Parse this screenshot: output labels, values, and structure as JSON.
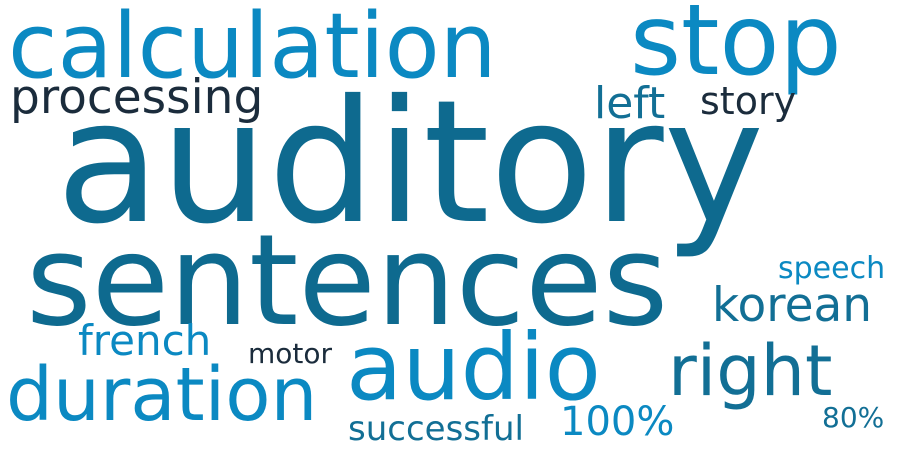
{
  "colors": {
    "background": "#ffffff",
    "dark_teal": "#0e6a8f",
    "light_blue": "#0b89c2",
    "navy": "#1b2c3c",
    "teal": "#126f95"
  },
  "words": [
    {
      "text": "auditory",
      "color": "#0e6a8f"
    },
    {
      "text": "sentences",
      "color": "#0e6a8f"
    },
    {
      "text": "calculation",
      "color": "#0b89c2"
    },
    {
      "text": "stop",
      "color": "#0b89c2"
    },
    {
      "text": "audio",
      "color": "#0b89c2"
    },
    {
      "text": "duration",
      "color": "#0b89c2"
    },
    {
      "text": "right",
      "color": "#126f95"
    },
    {
      "text": "processing",
      "color": "#1b2c3c"
    },
    {
      "text": "korean",
      "color": "#126f95"
    },
    {
      "text": "french",
      "color": "#0b89c2"
    },
    {
      "text": "left",
      "color": "#126f95"
    },
    {
      "text": "story",
      "color": "#1b2c3c"
    },
    {
      "text": "100%",
      "color": "#0b89c2"
    },
    {
      "text": "successful",
      "color": "#126f95"
    },
    {
      "text": "speech",
      "color": "#0b89c2"
    },
    {
      "text": "motor",
      "color": "#1b2c3c"
    },
    {
      "text": "80%",
      "color": "#126f95"
    }
  ]
}
